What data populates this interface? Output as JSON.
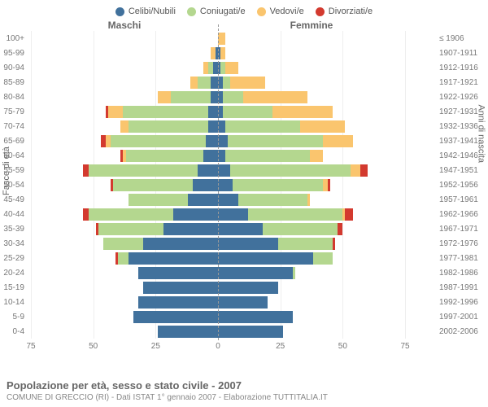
{
  "type": "population-pyramid",
  "legend": [
    {
      "label": "Celibi/Nubili",
      "color": "#41719c"
    },
    {
      "label": "Coniugati/e",
      "color": "#b4d78f"
    },
    {
      "label": "Vedovi/e",
      "color": "#fac56e"
    },
    {
      "label": "Divorziati/e",
      "color": "#d33a2f"
    }
  ],
  "gender_left": "Maschi",
  "gender_right": "Femmine",
  "y_left_title": "Fasce di età",
  "y_right_title": "Anni di nascita",
  "x_max": 75,
  "x_ticks": [
    75,
    50,
    25,
    0,
    25,
    50,
    75
  ],
  "footer_title": "Popolazione per età, sesso e stato civile - 2007",
  "footer_sub": "COMUNE DI GRECCIO (RI) - Dati ISTAT 1° gennaio 2007 - Elaborazione TUTTITALIA.IT",
  "background_color": "#ffffff",
  "grid_color": "#eeeeee",
  "label_color": "#777777",
  "rows": [
    {
      "age": "100+",
      "birth": "≤ 1906",
      "m": [
        0,
        0,
        0,
        0
      ],
      "f": [
        0,
        0,
        3,
        0
      ]
    },
    {
      "age": "95-99",
      "birth": "1907-1911",
      "m": [
        1,
        0,
        2,
        0
      ],
      "f": [
        1,
        0,
        2,
        0
      ]
    },
    {
      "age": "90-94",
      "birth": "1912-1916",
      "m": [
        2,
        2,
        2,
        0
      ],
      "f": [
        1,
        2,
        5,
        0
      ]
    },
    {
      "age": "85-89",
      "birth": "1917-1921",
      "m": [
        3,
        5,
        3,
        0
      ],
      "f": [
        2,
        3,
        14,
        0
      ]
    },
    {
      "age": "80-84",
      "birth": "1922-1926",
      "m": [
        3,
        16,
        5,
        0
      ],
      "f": [
        2,
        8,
        26,
        0
      ]
    },
    {
      "age": "75-79",
      "birth": "1927-1931",
      "m": [
        4,
        34,
        6,
        1
      ],
      "f": [
        2,
        20,
        24,
        0
      ]
    },
    {
      "age": "70-74",
      "birth": "1932-1936",
      "m": [
        4,
        32,
        3,
        0
      ],
      "f": [
        3,
        30,
        18,
        0
      ]
    },
    {
      "age": "65-69",
      "birth": "1937-1941",
      "m": [
        5,
        38,
        2,
        2
      ],
      "f": [
        4,
        38,
        12,
        0
      ]
    },
    {
      "age": "60-64",
      "birth": "1942-1946",
      "m": [
        6,
        31,
        1,
        1
      ],
      "f": [
        3,
        34,
        5,
        0
      ]
    },
    {
      "age": "55-59",
      "birth": "1947-1951",
      "m": [
        8,
        44,
        0,
        2
      ],
      "f": [
        5,
        48,
        4,
        3
      ]
    },
    {
      "age": "50-54",
      "birth": "1952-1956",
      "m": [
        10,
        32,
        0,
        1
      ],
      "f": [
        6,
        36,
        2,
        1
      ]
    },
    {
      "age": "45-49",
      "birth": "1957-1961",
      "m": [
        12,
        24,
        0,
        0
      ],
      "f": [
        8,
        28,
        1,
        0
      ]
    },
    {
      "age": "40-44",
      "birth": "1962-1966",
      "m": [
        18,
        34,
        0,
        2
      ],
      "f": [
        12,
        38,
        1,
        3
      ]
    },
    {
      "age": "35-39",
      "birth": "1967-1971",
      "m": [
        22,
        26,
        0,
        1
      ],
      "f": [
        18,
        30,
        0,
        2
      ]
    },
    {
      "age": "30-34",
      "birth": "1972-1976",
      "m": [
        30,
        16,
        0,
        0
      ],
      "f": [
        24,
        22,
        0,
        1
      ]
    },
    {
      "age": "25-29",
      "birth": "1977-1981",
      "m": [
        36,
        4,
        0,
        1
      ],
      "f": [
        38,
        8,
        0,
        0
      ]
    },
    {
      "age": "20-24",
      "birth": "1982-1986",
      "m": [
        32,
        0,
        0,
        0
      ],
      "f": [
        30,
        1,
        0,
        0
      ]
    },
    {
      "age": "15-19",
      "birth": "1987-1991",
      "m": [
        30,
        0,
        0,
        0
      ],
      "f": [
        24,
        0,
        0,
        0
      ]
    },
    {
      "age": "10-14",
      "birth": "1992-1996",
      "m": [
        32,
        0,
        0,
        0
      ],
      "f": [
        20,
        0,
        0,
        0
      ]
    },
    {
      "age": "5-9",
      "birth": "1997-2001",
      "m": [
        34,
        0,
        0,
        0
      ],
      "f": [
        30,
        0,
        0,
        0
      ]
    },
    {
      "age": "0-4",
      "birth": "2002-2006",
      "m": [
        24,
        0,
        0,
        0
      ],
      "f": [
        26,
        0,
        0,
        0
      ]
    }
  ]
}
